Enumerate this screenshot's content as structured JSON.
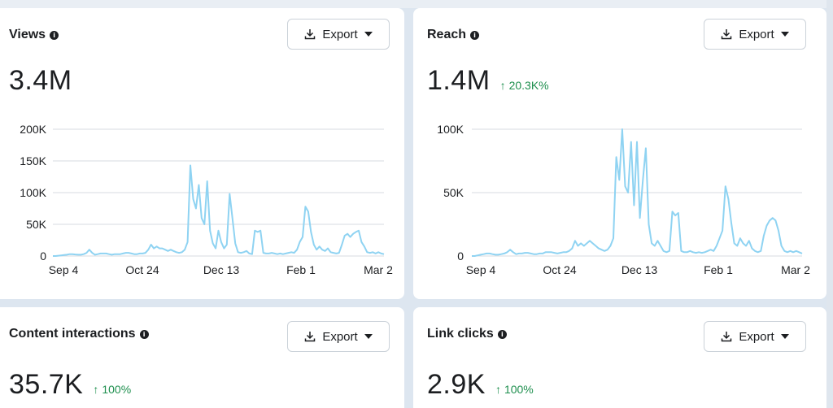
{
  "cards": [
    {
      "title": "Views",
      "value": "3.4M",
      "delta": "",
      "export_label": "Export",
      "chart_data": {
        "type": "line",
        "title": "",
        "y_ticks": [
          "0",
          "50K",
          "100K",
          "150K",
          "200K"
        ],
        "ylim": [
          0,
          200000
        ],
        "x_ticks": [
          "Sep 4",
          "Oct 24",
          "Dec 13",
          "Feb 1",
          "Mar 2"
        ],
        "grid": true,
        "series": [
          {
            "color": "#8fd3f2",
            "values": [
              0,
              0,
              500,
              1000,
              1500,
              2000,
              3000,
              3000,
              2500,
              2000,
              2000,
              3000,
              5000,
              10000,
              5000,
              2000,
              3000,
              4000,
              4000,
              4000,
              3000,
              2000,
              3000,
              3000,
              3000,
              4000,
              5000,
              5000,
              4000,
              3000,
              3000,
              4000,
              4000,
              5000,
              10000,
              18000,
              12000,
              15000,
              12000,
              12000,
              10000,
              8000,
              10000,
              8000,
              6000,
              5000,
              6000,
              10000,
              22000,
              143000,
              90000,
              75000,
              112000,
              60000,
              50000,
              118000,
              40000,
              20000,
              12000,
              40000,
              22000,
              12000,
              18000,
              98000,
              60000,
              20000,
              6000,
              5000,
              6000,
              8000,
              4000,
              3000,
              40000,
              38000,
              40000,
              5000,
              4000,
              4000,
              5000,
              4000,
              3000,
              4000,
              3000,
              4000,
              5000,
              6000,
              5000,
              10000,
              22000,
              30000,
              78000,
              70000,
              38000,
              18000,
              10000,
              15000,
              10000,
              8000,
              12000,
              6000,
              5000,
              4000,
              5000,
              18000,
              32000,
              35000,
              30000,
              35000,
              38000,
              40000,
              22000,
              15000,
              6000,
              5000,
              6000,
              4000,
              6000,
              4000,
              3000
            ]
          }
        ]
      }
    },
    {
      "title": "Reach",
      "value": "1.4M",
      "delta": "20.3K%",
      "export_label": "Export",
      "chart_data": {
        "type": "line",
        "title": "",
        "y_ticks": [
          "0",
          "50K",
          "100K"
        ],
        "ylim": [
          0,
          100000
        ],
        "x_ticks": [
          "Sep 4",
          "Oct 24",
          "Dec 13",
          "Feb 1",
          "Mar 2"
        ],
        "grid": true,
        "series": [
          {
            "color": "#8fd3f2",
            "values": [
              0,
              0,
              500,
              1000,
              1500,
              2000,
              2000,
              1500,
              1000,
              1000,
              1500,
              2000,
              3000,
              5000,
              3000,
              1500,
              2000,
              2000,
              2500,
              2500,
              2000,
              1500,
              1500,
              2000,
              2000,
              3000,
              3000,
              3000,
              2500,
              2000,
              2500,
              3000,
              3000,
              4000,
              6000,
              12000,
              8000,
              10000,
              8000,
              10000,
              12000,
              10000,
              8000,
              6000,
              5000,
              4000,
              5000,
              8000,
              14000,
              78000,
              60000,
              100000,
              55000,
              50000,
              90000,
              40000,
              90000,
              30000,
              60000,
              85000,
              25000,
              10000,
              8000,
              12000,
              8000,
              4000,
              3000,
              4000,
              35000,
              32000,
              34000,
              4000,
              3000,
              3000,
              4000,
              3000,
              2500,
              3000,
              2500,
              3000,
              4000,
              5000,
              4000,
              8000,
              14000,
              20000,
              55000,
              45000,
              26000,
              10000,
              8000,
              14000,
              10000,
              8000,
              12000,
              6000,
              4000,
              3000,
              4000,
              16000,
              24000,
              28000,
              30000,
              28000,
              20000,
              8000,
              4000,
              3000,
              4000,
              3000,
              4000,
              3000,
              2000
            ]
          }
        ]
      }
    },
    {
      "title": "Content interactions",
      "value": "35.7K",
      "delta": "100%",
      "export_label": "Export"
    },
    {
      "title": "Link clicks",
      "value": "2.9K",
      "delta": "100%",
      "export_label": "Export"
    }
  ]
}
